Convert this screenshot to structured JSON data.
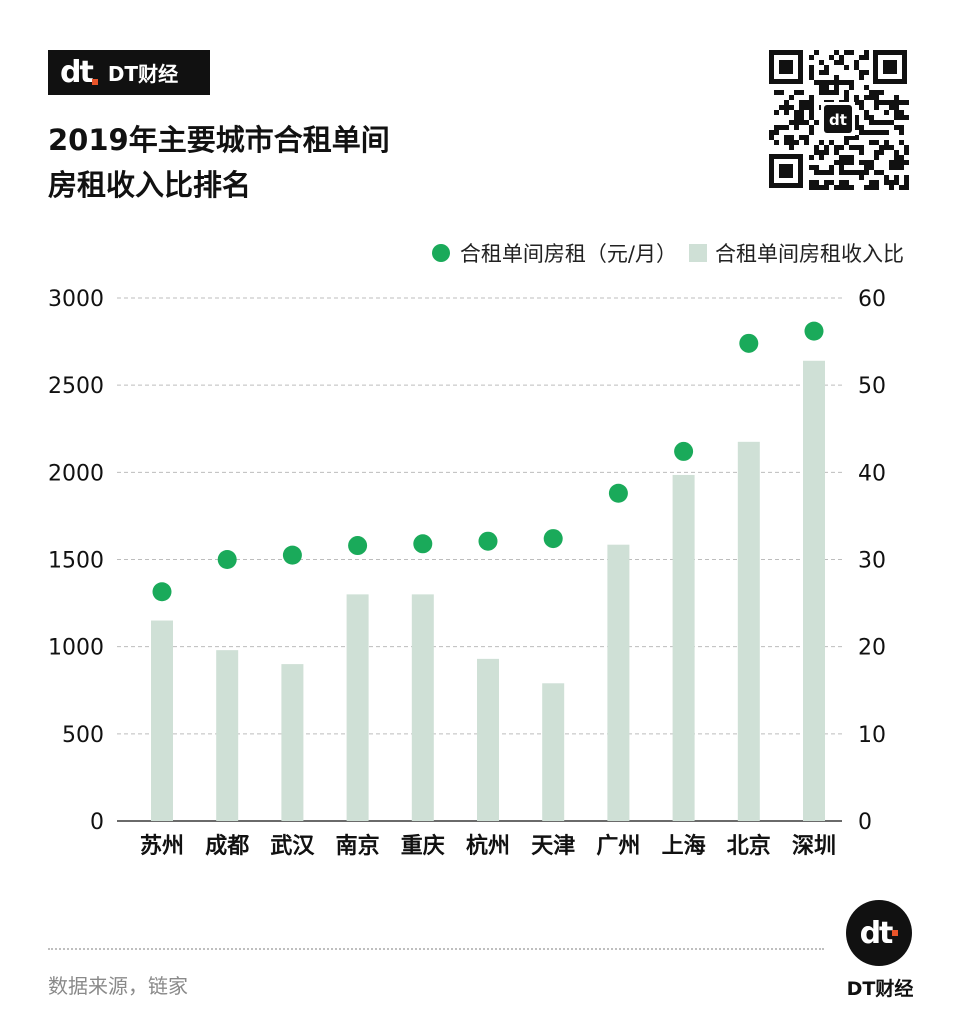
{
  "brand": {
    "name": "DT财经",
    "logo_text": "dt"
  },
  "title_lines": [
    "2019年主要城市合租单间",
    "房租收入比排名"
  ],
  "legend": {
    "rent_label": "合租单间房租（元/月）",
    "ratio_label": "合租单间房租收入比"
  },
  "source": "数据来源，链家",
  "footer_brand": "DT财经",
  "colors": {
    "rent_dot": "#1aaa5a",
    "ratio_bar": "#cfe0d6",
    "grid": "#bdbdbd"
  },
  "chart_data": {
    "type": "bar",
    "categories": [
      "苏州",
      "成都",
      "武汉",
      "南京",
      "重庆",
      "杭州",
      "天津",
      "广州",
      "上海",
      "北京",
      "深圳"
    ],
    "series": [
      {
        "name": "合租单间房租收入比",
        "type": "bar",
        "axis": "right",
        "values": [
          23,
          19.6,
          18,
          26,
          26,
          18.6,
          15.8,
          31.7,
          39.7,
          43.5,
          52.8
        ]
      },
      {
        "name": "合租单间房租（元/月）",
        "type": "scatter",
        "axis": "left",
        "values": [
          1315,
          1500,
          1525,
          1580,
          1590,
          1605,
          1620,
          1880,
          2120,
          2740,
          2810
        ]
      }
    ],
    "y_left": {
      "ticks": [
        0,
        500,
        1000,
        1500,
        2000,
        2500,
        3000
      ],
      "ylim": [
        0,
        3000
      ]
    },
    "y_right": {
      "ticks": [
        0,
        10,
        20,
        30,
        40,
        50,
        60
      ],
      "ylim": [
        0,
        60
      ]
    },
    "grid": true,
    "legend_position": "top-right"
  }
}
